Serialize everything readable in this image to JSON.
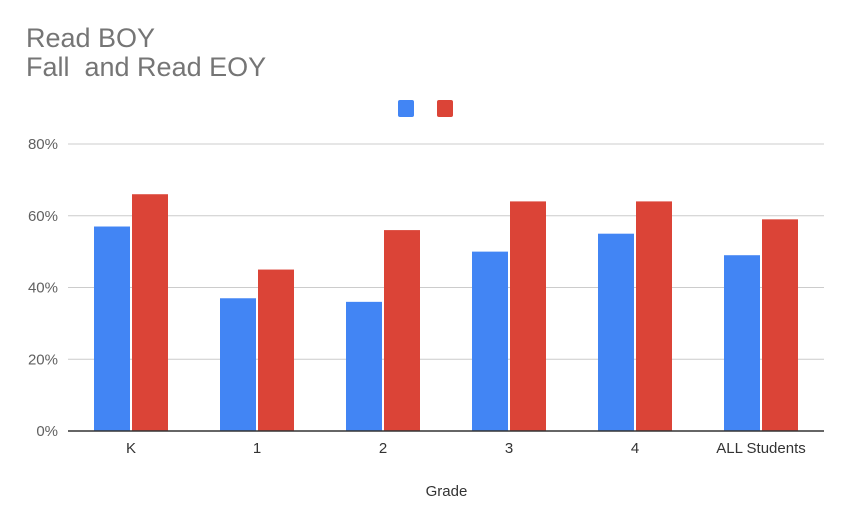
{
  "colors": {
    "series1": "#4285f4",
    "series2": "#db4437",
    "gridline": "#cccccc",
    "axis": "#333333"
  },
  "chart_data": {
    "type": "bar",
    "title_lines": [
      "Read BOY",
      "Fall  and Read EOY"
    ],
    "xlabel": "Grade",
    "ylabel": "",
    "categories": [
      "K",
      "1",
      "2",
      "3",
      "4",
      "ALL Students"
    ],
    "series": [
      {
        "values": [
          0.57,
          0.37,
          0.36,
          0.5,
          0.55,
          0.49
        ]
      },
      {
        "values": [
          0.66,
          0.45,
          0.56,
          0.64,
          0.64,
          0.59
        ]
      }
    ],
    "ylim": [
      0,
      0.8
    ],
    "yticks": [
      0,
      0.2,
      0.4,
      0.6,
      0.8
    ],
    "ytick_labels": [
      "0%",
      "20%",
      "40%",
      "60%",
      "80%"
    ],
    "grid": true,
    "legend_position": "top"
  }
}
